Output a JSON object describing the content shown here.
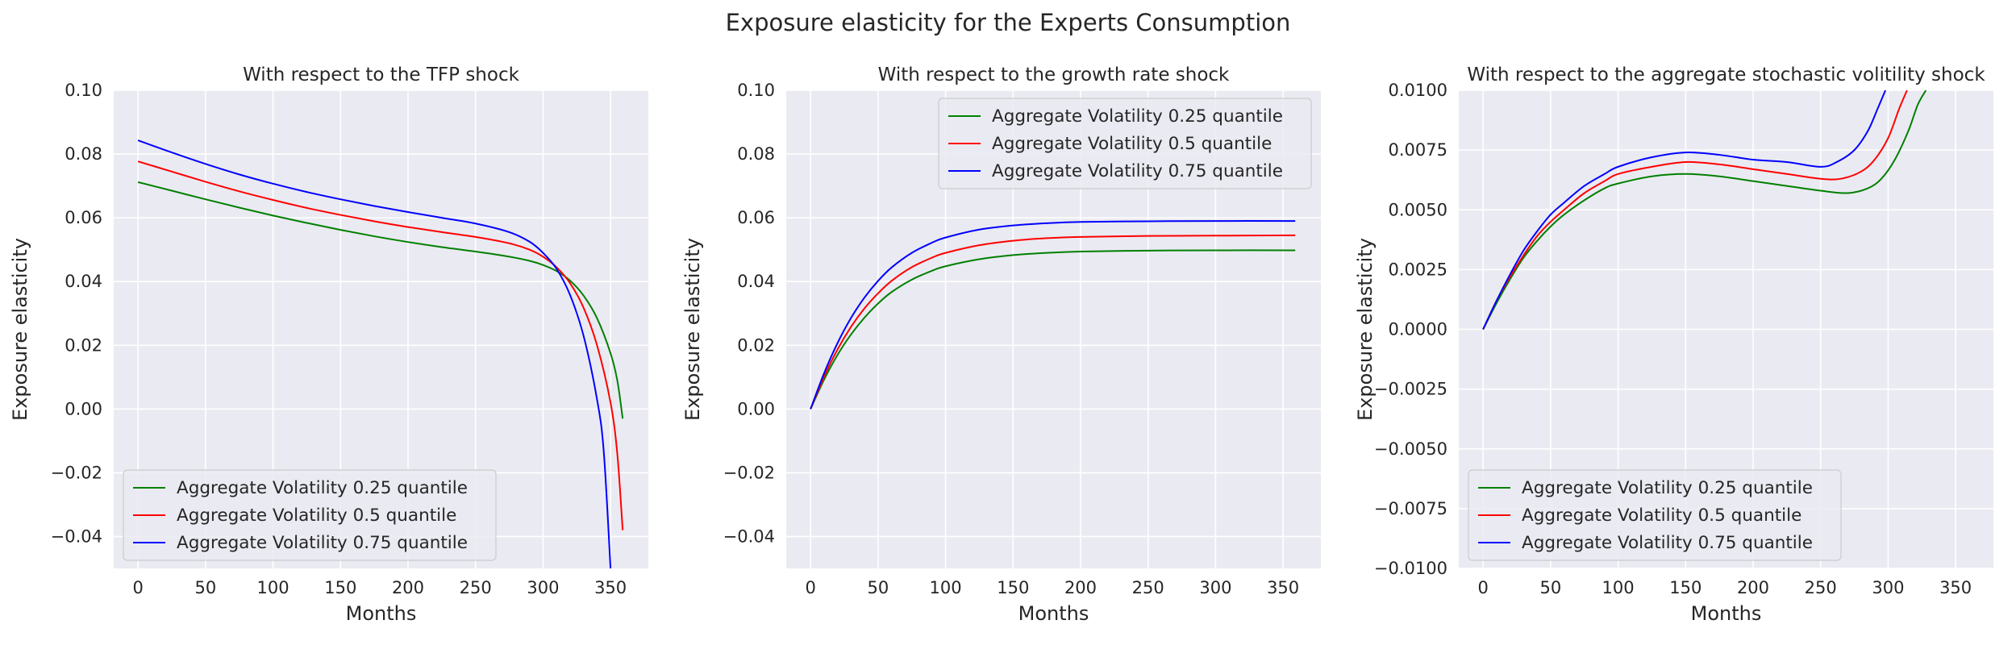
{
  "figure": {
    "suptitle": "Exposure elasticity for the Experts Consumption"
  },
  "chart_data": [
    {
      "type": "line",
      "title": "With respect to the TFP shock",
      "xlabel": "Months",
      "ylabel": "Exposure elasticity",
      "xlim": [
        -18,
        378
      ],
      "ylim": [
        -0.05,
        0.1
      ],
      "xticks": [
        0,
        50,
        100,
        150,
        200,
        250,
        300,
        350
      ],
      "xtick_labels": [
        "0",
        "50",
        "100",
        "150",
        "200",
        "250",
        "300",
        "350"
      ],
      "yticks": [
        -0.04,
        -0.02,
        0.0,
        0.02,
        0.04,
        0.06,
        0.08,
        0.1
      ],
      "ytick_labels": [
        "−0.04",
        "−0.02",
        "0.00",
        "0.02",
        "0.04",
        "0.06",
        "0.08",
        "0.10"
      ],
      "grid": true,
      "legend_position": "lower-left",
      "series": [
        {
          "name": "Aggregate Volatility 0.25 quantile",
          "color": "#008000",
          "x": [
            0,
            25,
            50,
            75,
            100,
            125,
            150,
            175,
            200,
            225,
            250,
            275,
            290,
            300,
            310,
            320,
            330,
            340,
            350,
            355,
            359
          ],
          "y": [
            0.0712,
            0.0685,
            0.0658,
            0.0632,
            0.0607,
            0.0584,
            0.0562,
            0.0542,
            0.0524,
            0.0508,
            0.0494,
            0.0478,
            0.0465,
            0.0452,
            0.0433,
            0.0403,
            0.0356,
            0.0285,
            0.0175,
            0.009,
            -0.003
          ]
        },
        {
          "name": "Aggregate Volatility 0.5 quantile",
          "color": "#ff0000",
          "x": [
            0,
            25,
            50,
            75,
            100,
            125,
            150,
            175,
            200,
            225,
            250,
            275,
            290,
            300,
            310,
            320,
            330,
            340,
            350,
            355,
            359
          ],
          "y": [
            0.0777,
            0.0745,
            0.0713,
            0.0683,
            0.0656,
            0.0631,
            0.0609,
            0.0589,
            0.0571,
            0.0555,
            0.054,
            0.052,
            0.05,
            0.0478,
            0.0445,
            0.0395,
            0.0318,
            0.02,
            0.002,
            -0.014,
            -0.038
          ]
        },
        {
          "name": "Aggregate Volatility 0.75 quantile",
          "color": "#0000ff",
          "x": [
            0,
            25,
            50,
            75,
            100,
            125,
            150,
            175,
            200,
            225,
            250,
            275,
            290,
            300,
            310,
            320,
            330,
            340,
            345,
            350
          ],
          "y": [
            0.0843,
            0.0805,
            0.0769,
            0.0736,
            0.0707,
            0.0681,
            0.0658,
            0.0637,
            0.0618,
            0.06,
            0.0582,
            0.0555,
            0.0525,
            0.049,
            0.044,
            0.0358,
            0.023,
            0.003,
            -0.0135,
            -0.05
          ]
        }
      ]
    },
    {
      "type": "line",
      "title": "With respect to the growth rate shock",
      "xlabel": "Months",
      "ylabel": "Exposure elasticity",
      "xlim": [
        -18,
        378
      ],
      "ylim": [
        -0.05,
        0.1
      ],
      "xticks": [
        0,
        50,
        100,
        150,
        200,
        250,
        300,
        350
      ],
      "xtick_labels": [
        "0",
        "50",
        "100",
        "150",
        "200",
        "250",
        "300",
        "350"
      ],
      "yticks": [
        -0.04,
        -0.02,
        0.0,
        0.02,
        0.04,
        0.06,
        0.08,
        0.1
      ],
      "ytick_labels": [
        "−0.04",
        "−0.02",
        "0.00",
        "0.02",
        "0.04",
        "0.06",
        "0.08",
        "0.10"
      ],
      "grid": true,
      "legend_position": "upper-right",
      "series": [
        {
          "name": "Aggregate Volatility 0.25 quantile",
          "color": "#008000",
          "x": [
            0,
            10,
            20,
            30,
            40,
            50,
            60,
            75,
            90,
            100,
            125,
            150,
            175,
            200,
            250,
            300,
            359
          ],
          "y": [
            0.0,
            0.0092,
            0.017,
            0.0234,
            0.0287,
            0.0331,
            0.0367,
            0.0406,
            0.0434,
            0.0448,
            0.047,
            0.0483,
            0.049,
            0.0494,
            0.0497,
            0.0498,
            0.0498
          ]
        },
        {
          "name": "Aggregate Volatility 0.5 quantile",
          "color": "#ff0000",
          "x": [
            0,
            10,
            20,
            30,
            40,
            50,
            60,
            75,
            90,
            100,
            125,
            150,
            175,
            200,
            250,
            300,
            359
          ],
          "y": [
            0.0,
            0.0101,
            0.0187,
            0.0258,
            0.0316,
            0.0363,
            0.0402,
            0.0445,
            0.0475,
            0.049,
            0.0514,
            0.0528,
            0.0536,
            0.054,
            0.0543,
            0.0544,
            0.0545
          ]
        },
        {
          "name": "Aggregate Volatility 0.75 quantile",
          "color": "#0000ff",
          "x": [
            0,
            10,
            20,
            30,
            40,
            50,
            60,
            75,
            90,
            100,
            125,
            150,
            175,
            200,
            250,
            300,
            359
          ],
          "y": [
            0.0,
            0.0112,
            0.0207,
            0.0286,
            0.035,
            0.0402,
            0.0444,
            0.049,
            0.0522,
            0.0538,
            0.0563,
            0.0576,
            0.0583,
            0.0587,
            0.0589,
            0.059,
            0.059
          ]
        }
      ]
    },
    {
      "type": "line",
      "title": "With respect to the aggregate stochastic volitility shock",
      "xlabel": "Months",
      "ylabel": "Exposure elasticity",
      "xlim": [
        -18,
        378
      ],
      "ylim": [
        -0.01,
        0.01
      ],
      "xticks": [
        0,
        50,
        100,
        150,
        200,
        250,
        300,
        350
      ],
      "xtick_labels": [
        "0",
        "50",
        "100",
        "150",
        "200",
        "250",
        "300",
        "350"
      ],
      "yticks": [
        -0.01,
        -0.0075,
        -0.005,
        -0.0025,
        0.0,
        0.0025,
        0.005,
        0.0075,
        0.01
      ],
      "ytick_labels": [
        "−0.0100",
        "−0.0075",
        "−0.0050",
        "−0.0025",
        "0.0000",
        "0.0025",
        "0.0050",
        "0.0075",
        "0.0100"
      ],
      "grid": true,
      "legend_position": "lower-left",
      "series": [
        {
          "name": "Aggregate Volatility 0.25 quantile",
          "color": "#008000",
          "x": [
            0,
            10,
            20,
            30,
            40,
            50,
            60,
            75,
            90,
            100,
            125,
            150,
            175,
            200,
            225,
            250,
            270,
            285,
            295,
            305,
            315,
            322,
            328
          ],
          "y": [
            0.0,
            0.0011,
            0.0021,
            0.003,
            0.0037,
            0.0043,
            0.0048,
            0.0054,
            0.0059,
            0.0061,
            0.0064,
            0.0065,
            0.0064,
            0.0062,
            0.006,
            0.0058,
            0.0057,
            0.0059,
            0.0063,
            0.0071,
            0.0083,
            0.0094,
            0.01
          ]
        },
        {
          "name": "Aggregate Volatility 0.5 quantile",
          "color": "#ff0000",
          "x": [
            0,
            10,
            20,
            30,
            40,
            50,
            60,
            75,
            90,
            100,
            125,
            150,
            175,
            200,
            225,
            250,
            265,
            280,
            290,
            300,
            308,
            314
          ],
          "y": [
            0.0,
            0.0012,
            0.0022,
            0.0031,
            0.0039,
            0.0045,
            0.005,
            0.0057,
            0.0062,
            0.0065,
            0.0068,
            0.007,
            0.0069,
            0.0067,
            0.0065,
            0.0063,
            0.0063,
            0.0066,
            0.0071,
            0.008,
            0.0092,
            0.01
          ]
        },
        {
          "name": "Aggregate Volatility 0.75 quantile",
          "color": "#0000ff",
          "x": [
            0,
            10,
            20,
            30,
            40,
            50,
            60,
            75,
            90,
            100,
            125,
            150,
            175,
            200,
            225,
            250,
            262,
            275,
            285,
            292,
            298
          ],
          "y": [
            0.0,
            0.0012,
            0.0023,
            0.0033,
            0.0041,
            0.0048,
            0.0053,
            0.006,
            0.0065,
            0.0068,
            0.0072,
            0.0074,
            0.0073,
            0.0071,
            0.007,
            0.0068,
            0.007,
            0.0075,
            0.0083,
            0.0092,
            0.01
          ]
        }
      ]
    }
  ]
}
